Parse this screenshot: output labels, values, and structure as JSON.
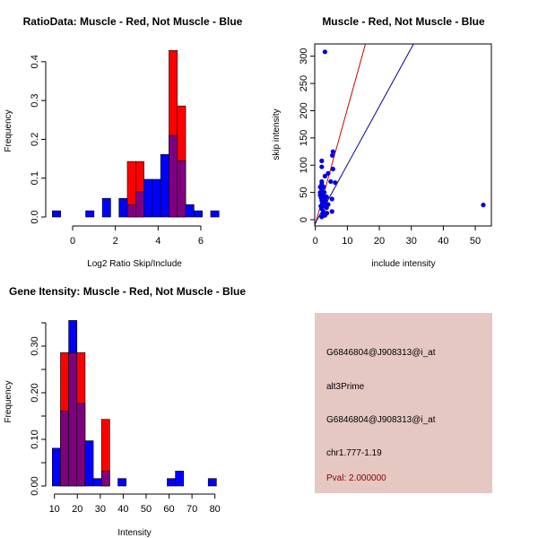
{
  "colors": {
    "red": "#ff0000",
    "blue": "#0000ff",
    "overlap": "#7f007f",
    "panel": "#e5c8c2",
    "pval": "#8b0000"
  },
  "chart_data": [
    {
      "type": "bar",
      "title": "RatioData: Muscle - Red, Not Muscle - Blue",
      "xlabel": "Log2 Ratio Skip/Include",
      "ylabel": "Frequency",
      "xticks": [
        "0",
        "2",
        "4",
        "6"
      ],
      "yticks": [
        "0.0",
        "0.1",
        "0.2",
        "0.3",
        "0.4"
      ],
      "bin_start": -0.95,
      "bin_width": 0.39,
      "series": [
        {
          "name": "Not Muscle",
          "color": "blue",
          "bins": {
            "0": 0.016,
            "4": 0.016,
            "6": 0.048,
            "8": 0.048,
            "9": 0.032,
            "10": 0.065,
            "11": 0.097,
            "12": 0.097,
            "13": 0.161,
            "14": 0.21,
            "15": 0.145,
            "16": 0.032,
            "17": 0.016,
            "19": 0.016
          }
        },
        {
          "name": "Muscle",
          "color": "red",
          "bins": {
            "9": 0.143,
            "10": 0.143,
            "14": 0.429,
            "15": 0.286
          }
        }
      ]
    },
    {
      "type": "scatter",
      "title": "Muscle - Red, Not Muscle - Blue",
      "xlabel": "include intensity",
      "ylabel": "skip intensity",
      "xticks": [
        "0",
        "10",
        "20",
        "30",
        "40",
        "50"
      ],
      "yticks": [
        "0",
        "50",
        "100",
        "150",
        "200",
        "250",
        "300"
      ],
      "points": [
        [
          3,
          308
        ],
        [
          52.5,
          27
        ],
        [
          2,
          108
        ],
        [
          2,
          97
        ],
        [
          5.5,
          125
        ],
        [
          5.3,
          118
        ],
        [
          5.5,
          93
        ],
        [
          3,
          80
        ],
        [
          4,
          85
        ],
        [
          6.2,
          68
        ],
        [
          4.8,
          70
        ],
        [
          2,
          70
        ],
        [
          2,
          65
        ],
        [
          1.5,
          60
        ],
        [
          2,
          55
        ],
        [
          1.5,
          50
        ],
        [
          1.5,
          45
        ],
        [
          2.5,
          45
        ],
        [
          3,
          40
        ],
        [
          3.5,
          42
        ],
        [
          5.2,
          38
        ],
        [
          2,
          35
        ],
        [
          3,
          30
        ],
        [
          4,
          28
        ],
        [
          2.5,
          25
        ],
        [
          3.5,
          22
        ],
        [
          2,
          20
        ],
        [
          2.5,
          15
        ],
        [
          5.2,
          15
        ],
        [
          3,
          10
        ],
        [
          2,
          5
        ],
        [
          3,
          8
        ],
        [
          1.8,
          40
        ],
        [
          2.2,
          30
        ],
        [
          2.8,
          50
        ],
        [
          3.2,
          35
        ],
        [
          2.6,
          60
        ],
        [
          1.7,
          25
        ],
        [
          2.4,
          10
        ],
        [
          3.6,
          12
        ]
      ],
      "lines": [
        {
          "name": "Muscle fit",
          "color": "red",
          "intercept": -8,
          "slope": 21.1
        },
        {
          "name": "Not Muscle fit",
          "color": "blue",
          "intercept": -6,
          "slope": 10.7
        }
      ]
    },
    {
      "type": "bar",
      "title": "Gene Itensity: Muscle - Red, Not Muscle - Blue",
      "xlabel": "Intensity",
      "ylabel": "Frequency",
      "xticks": [
        "10",
        "20",
        "30",
        "40",
        "50",
        "60",
        "70",
        "80"
      ],
      "yticks": [
        "0.00",
        "0.10",
        "0.20",
        "0.30"
      ],
      "bin_start": 9.06,
      "bin_width": 3.58,
      "series": [
        {
          "name": "Not Muscle",
          "color": "blue",
          "bins": {
            "0": 0.081,
            "1": 0.161,
            "2": 0.355,
            "3": 0.177,
            "4": 0.097,
            "5": 0.016,
            "6": 0.032,
            "8": 0.016,
            "14": 0.016,
            "15": 0.032,
            "19": 0.016
          }
        },
        {
          "name": "Muscle",
          "color": "red",
          "bins": {
            "1": 0.286,
            "2": 0.286,
            "3": 0.286,
            "6": 0.143
          }
        }
      ]
    }
  ],
  "info": {
    "probe1": "G6846804@J908313@i_at",
    "type": "alt3Prime",
    "probe2": "G6846804@J908313@i_at",
    "location": "chr1.777-1.19",
    "pval": "Pval: 2.000000"
  }
}
